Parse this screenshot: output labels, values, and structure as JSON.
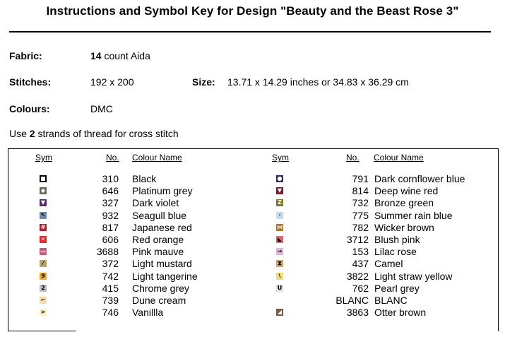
{
  "title": "Instructions and Symbol Key for Design \"Beauty and the Beast Rose 3\"",
  "fabric": {
    "label": "Fabric:",
    "count": "14",
    "rest": "count Aida"
  },
  "stitches": {
    "label": "Stitches:",
    "value": "192 x 200"
  },
  "size": {
    "label": "Size:",
    "value": "13.71 x 14.29 inches or 34.83 x 36.29 cm"
  },
  "colours": {
    "label": "Colours:",
    "value": "DMC"
  },
  "strands": {
    "pre": "Use",
    "count": "2",
    "post": "strands of thread for cross stitch"
  },
  "headers": {
    "sym": "Sym",
    "no": "No.",
    "name": "Colour Name"
  },
  "left_rows": [
    {
      "no": "310",
      "name": "Black",
      "glyph": "",
      "bg": "#ffffff",
      "fg": "#000000",
      "icon": "open-square-icon"
    },
    {
      "no": "646",
      "name": "Platinum grey",
      "glyph": "◆",
      "bg": "#6b6a5a",
      "fg": "#ffffff",
      "icon": "diamond-icon"
    },
    {
      "no": "327",
      "name": "Dark violet",
      "glyph": "▼",
      "bg": "#5a2a6a",
      "fg": "#ffffff",
      "icon": "down-triangle-icon"
    },
    {
      "no": "932",
      "name": "Seagull blue",
      "glyph": "↖",
      "bg": "#6f8aa8",
      "fg": "#000000",
      "icon": "arrow-icon"
    },
    {
      "no": "817",
      "name": "Japanese red",
      "glyph": "#",
      "bg": "#b0202a",
      "fg": "#ffffff",
      "icon": "hash-icon"
    },
    {
      "no": "606",
      "name": "Red orange",
      "glyph": "✕",
      "bg": "#e8262a",
      "fg": "#ffffff",
      "icon": "cross-icon"
    },
    {
      "no": "3688",
      "name": "Pink mauve",
      "glyph": "—",
      "bg": "#c85c7a",
      "fg": "#ffffff",
      "icon": "dash-icon"
    },
    {
      "no": "372",
      "name": "Light mustard",
      "glyph": "⁄",
      "bg": "#b7a46a",
      "fg": "#000000",
      "icon": "slash-icon"
    },
    {
      "no": "742",
      "name": "Light tangerine",
      "glyph": "9",
      "bg": "#f5a623",
      "fg": "#000000",
      "icon": "nine-icon"
    },
    {
      "no": "415",
      "name": "Chrome grey",
      "glyph": "2",
      "bg": "#b8bcc4",
      "fg": "#000000",
      "icon": "two-icon"
    },
    {
      "no": "739",
      "name": "Dune cream",
      "glyph": "⌐",
      "bg": "#f3dcb0",
      "fg": "#000000",
      "icon": "corner-icon"
    },
    {
      "no": "746",
      "name": "Vanillla",
      "glyph": ">",
      "bg": "#fbf3c6",
      "fg": "#000000",
      "icon": "chevron-icon"
    }
  ],
  "right_rows": [
    {
      "no": "791",
      "name": "Dark cornflower blue",
      "glyph": "●",
      "bg": "#2c2f6a",
      "fg": "#ffffff",
      "icon": "circle-icon"
    },
    {
      "no": "814",
      "name": "Deep wine red",
      "glyph": "▼",
      "bg": "#7a1a2a",
      "fg": "#ffffff",
      "icon": "down-triangle-icon"
    },
    {
      "no": "732",
      "name": "Bronze green",
      "glyph": "Z",
      "bg": "#7d7a2a",
      "fg": "#ffffff",
      "icon": "z-icon"
    },
    {
      "no": "775",
      "name": "Summer rain blue",
      "glyph": "·",
      "bg": "#c4dbec",
      "fg": "#000000",
      "icon": "dot-icon"
    },
    {
      "no": "782",
      "name": "Wicker brown",
      "glyph": "⋈",
      "bg": "#b0742a",
      "fg": "#ffffff",
      "icon": "bowtie-icon"
    },
    {
      "no": "3712",
      "name": "Blush pink",
      "glyph": "◣",
      "bg": "#d86a76",
      "fg": "#000000",
      "icon": "corner-triangle-icon"
    },
    {
      "no": "153",
      "name": "Lilac rose",
      "glyph": "→",
      "bg": "#e0b4d8",
      "fg": "#000000",
      "icon": "arrow-right-icon"
    },
    {
      "no": "437",
      "name": "Camel",
      "glyph": "⧗",
      "bg": "#d4a664",
      "fg": "#000000",
      "icon": "hourglass-icon"
    },
    {
      "no": "3822",
      "name": "Light straw yellow",
      "glyph": "\\",
      "bg": "#f0dc7c",
      "fg": "#000000",
      "icon": "backslash-icon"
    },
    {
      "no": "762",
      "name": "Pearl grey",
      "glyph": "U",
      "bg": "#dcdcdc",
      "fg": "#000000",
      "icon": "u-icon"
    },
    {
      "no": "BLANC",
      "name": "BLANC",
      "glyph": "",
      "bg": "",
      "fg": "",
      "icon": ""
    },
    {
      "no": "3863",
      "name": "Otter brown",
      "glyph": "◢",
      "bg": "#7a5a40",
      "fg": "#ffffff",
      "icon": "triangle-icon"
    }
  ]
}
